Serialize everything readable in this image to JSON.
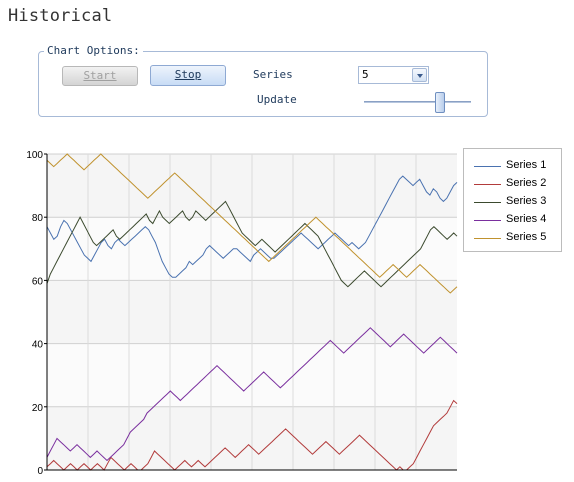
{
  "title": "Historical",
  "options": {
    "legend": "Chart Options:",
    "start_label": "Start",
    "stop_label": "Stop",
    "series_label": "Series",
    "series_value": "5",
    "update_label": "Update",
    "update_level": 0.72
  },
  "chart_data": {
    "type": "line",
    "ylim": [
      0,
      100
    ],
    "y_ticks": [
      "0",
      "20",
      "40",
      "60",
      "80",
      "100"
    ],
    "grid": true,
    "legend_position": "right",
    "series": [
      {
        "name": "Series 1",
        "color": "#4a72b0",
        "values": [
          77,
          75,
          73,
          74,
          77,
          79,
          78,
          76,
          74,
          72,
          70,
          68,
          67,
          66,
          68,
          70,
          72,
          73,
          71,
          70,
          72,
          73,
          72,
          71,
          72,
          73,
          74,
          75,
          76,
          77,
          76,
          74,
          72,
          69,
          66,
          64,
          62,
          61,
          61,
          62,
          63,
          64,
          66,
          65,
          66,
          67,
          68,
          70,
          71,
          70,
          69,
          68,
          67,
          68,
          69,
          70,
          70,
          69,
          68,
          67,
          66,
          68,
          69,
          70,
          69,
          68,
          67,
          67,
          68,
          69,
          70,
          71,
          72,
          73,
          74,
          75,
          74,
          73,
          72,
          71,
          70,
          71,
          72,
          73,
          74,
          75,
          74,
          73,
          72,
          71,
          72,
          71,
          70,
          71,
          72,
          74,
          76,
          78,
          80,
          82,
          84,
          86,
          88,
          90,
          92,
          93,
          92,
          91,
          90,
          91,
          92,
          90,
          88,
          87,
          89,
          88,
          86,
          85,
          86,
          88,
          90,
          91
        ]
      },
      {
        "name": "Series 2",
        "color": "#b23b3b",
        "values": [
          1,
          2,
          3,
          2,
          1,
          0,
          1,
          2,
          1,
          0,
          1,
          2,
          1,
          0,
          1,
          2,
          1,
          0,
          2,
          4,
          3,
          2,
          1,
          0,
          1,
          2,
          1,
          0,
          0,
          1,
          2,
          4,
          6,
          5,
          4,
          3,
          2,
          1,
          0,
          1,
          2,
          3,
          2,
          1,
          2,
          3,
          2,
          1,
          2,
          3,
          4,
          5,
          6,
          7,
          6,
          5,
          4,
          5,
          6,
          7,
          8,
          7,
          6,
          5,
          6,
          7,
          8,
          9,
          10,
          11,
          12,
          13,
          12,
          11,
          10,
          9,
          8,
          7,
          6,
          5,
          6,
          7,
          8,
          9,
          8,
          7,
          6,
          5,
          6,
          7,
          8,
          9,
          10,
          11,
          10,
          9,
          8,
          7,
          6,
          5,
          4,
          3,
          2,
          1,
          0,
          1,
          0,
          0,
          1,
          2,
          4,
          6,
          8,
          10,
          12,
          14,
          15,
          16,
          17,
          18,
          20,
          22,
          21
        ]
      },
      {
        "name": "Series 3",
        "color": "#3b4a2e",
        "values": [
          59,
          62,
          64,
          66,
          68,
          70,
          72,
          74,
          76,
          78,
          80,
          78,
          76,
          74,
          72,
          71,
          72,
          73,
          74,
          75,
          76,
          74,
          73,
          74,
          75,
          76,
          77,
          78,
          79,
          80,
          81,
          79,
          78,
          80,
          82,
          80,
          79,
          78,
          79,
          80,
          81,
          82,
          80,
          79,
          80,
          82,
          81,
          80,
          79,
          80,
          81,
          82,
          83,
          84,
          85,
          83,
          81,
          79,
          77,
          75,
          74,
          73,
          72,
          71,
          72,
          73,
          72,
          71,
          70,
          69,
          70,
          71,
          72,
          73,
          74,
          75,
          76,
          77,
          78,
          77,
          76,
          75,
          74,
          72,
          70,
          68,
          66,
          64,
          62,
          60,
          59,
          58,
          59,
          60,
          61,
          62,
          63,
          62,
          61,
          60,
          59,
          58,
          59,
          60,
          61,
          62,
          63,
          64,
          65,
          66,
          67,
          68,
          69,
          70,
          72,
          74,
          76,
          77,
          76,
          75,
          74,
          73,
          74,
          75,
          74
        ]
      },
      {
        "name": "Series 4",
        "color": "#7a2f9e",
        "values": [
          4,
          6,
          8,
          10,
          9,
          8,
          7,
          6,
          7,
          8,
          7,
          6,
          5,
          4,
          5,
          6,
          5,
          4,
          3,
          4,
          5,
          6,
          7,
          8,
          10,
          12,
          13,
          14,
          15,
          16,
          18,
          19,
          20,
          21,
          22,
          23,
          24,
          25,
          24,
          23,
          22,
          23,
          24,
          25,
          26,
          27,
          28,
          29,
          30,
          31,
          32,
          33,
          32,
          31,
          30,
          29,
          28,
          27,
          26,
          25,
          26,
          27,
          28,
          29,
          30,
          31,
          30,
          29,
          28,
          27,
          26,
          27,
          28,
          29,
          30,
          31,
          32,
          33,
          34,
          35,
          36,
          37,
          38,
          39,
          40,
          41,
          40,
          39,
          38,
          37,
          38,
          39,
          40,
          41,
          42,
          43,
          44,
          45,
          44,
          43,
          42,
          41,
          40,
          39,
          40,
          41,
          42,
          43,
          42,
          41,
          40,
          39,
          38,
          37,
          38,
          39,
          40,
          41,
          42,
          41,
          40,
          39,
          38,
          37
        ]
      },
      {
        "name": "Series 5",
        "color": "#c0922e",
        "values": [
          98,
          97,
          96,
          97,
          98,
          99,
          100,
          99,
          98,
          97,
          96,
          95,
          96,
          97,
          98,
          99,
          100,
          99,
          98,
          97,
          96,
          95,
          94,
          93,
          92,
          91,
          90,
          89,
          88,
          87,
          86,
          87,
          88,
          89,
          90,
          91,
          92,
          93,
          94,
          93,
          92,
          91,
          90,
          89,
          88,
          87,
          86,
          85,
          84,
          83,
          82,
          81,
          80,
          79,
          78,
          77,
          76,
          75,
          74,
          73,
          72,
          71,
          70,
          69,
          68,
          67,
          66,
          67,
          68,
          69,
          70,
          71,
          72,
          73,
          74,
          75,
          76,
          77,
          78,
          79,
          80,
          79,
          78,
          77,
          76,
          75,
          74,
          73,
          72,
          71,
          70,
          69,
          68,
          67,
          66,
          65,
          64,
          63,
          62,
          61,
          62,
          63,
          64,
          65,
          64,
          63,
          62,
          61,
          62,
          63,
          64,
          65,
          64,
          63,
          62,
          61,
          60,
          59,
          58,
          57,
          56,
          57,
          58
        ]
      }
    ]
  }
}
